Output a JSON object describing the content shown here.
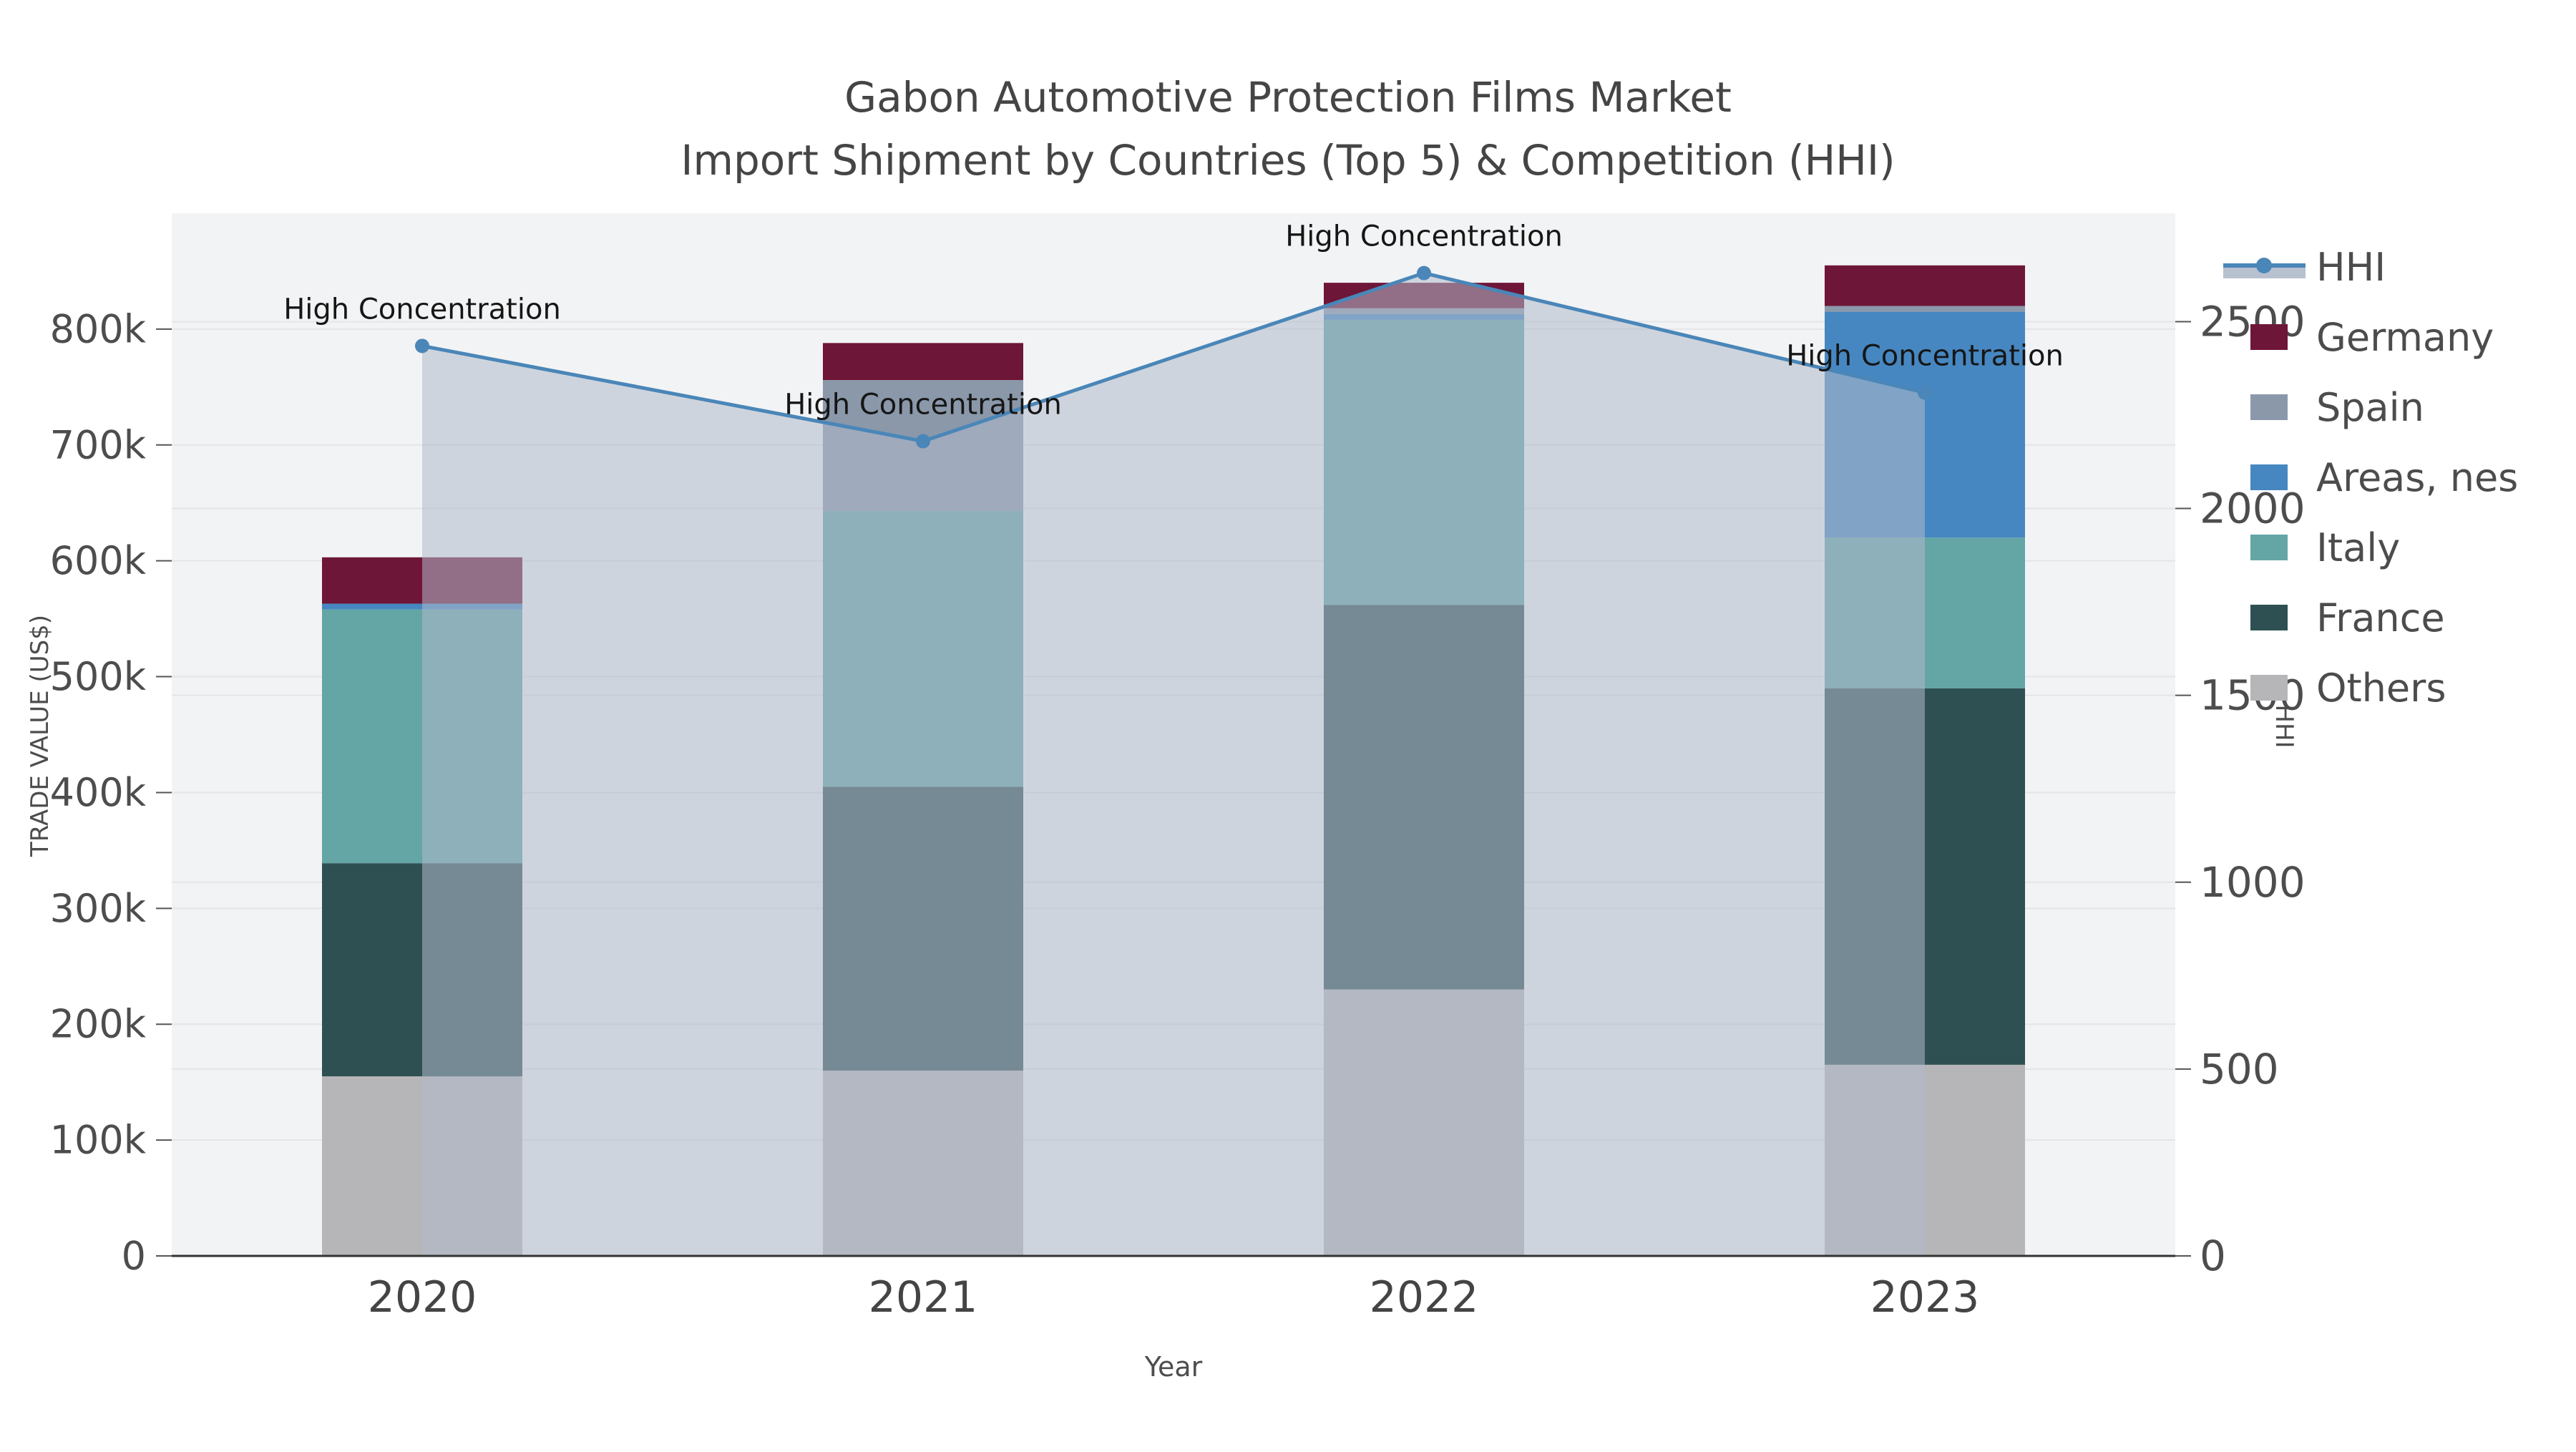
{
  "title": {
    "line1": "Gabon Automotive Protection Films Market",
    "line2": "Import Shipment by Countries (Top 5) & Competition (HHI)"
  },
  "legend": {
    "items": [
      {
        "label": "HHI",
        "type": "line",
        "color": "#4a86b8"
      },
      {
        "label": "Germany",
        "type": "swatch",
        "color": "#6e1637"
      },
      {
        "label": "Spain",
        "type": "swatch",
        "color": "#8a98aa"
      },
      {
        "label": "Areas, nes",
        "type": "swatch",
        "color": "#4687c1"
      },
      {
        "label": "Italy",
        "type": "swatch",
        "color": "#64a5a6"
      },
      {
        "label": "France",
        "type": "swatch",
        "color": "#2e5053"
      },
      {
        "label": "Others",
        "type": "swatch",
        "color": "#b6b6b8"
      }
    ]
  },
  "chart_data": {
    "type": "combo-stacked-bar-line",
    "categories": [
      "2020",
      "2021",
      "2022",
      "2023"
    ],
    "series": [
      {
        "name": "Others",
        "color": "#b6b6b8",
        "values": [
          155000,
          160000,
          230000,
          165000
        ]
      },
      {
        "name": "France",
        "color": "#2e5053",
        "values": [
          184000,
          245000,
          332000,
          325000
        ]
      },
      {
        "name": "Italy",
        "color": "#64a5a6",
        "values": [
          219000,
          238000,
          246000,
          130000
        ]
      },
      {
        "name": "Areas, nes",
        "color": "#4687c1",
        "values": [
          5000,
          0,
          5000,
          195000
        ]
      },
      {
        "name": "Spain",
        "color": "#8a98aa",
        "values": [
          0,
          113000,
          5000,
          5000
        ]
      },
      {
        "name": "Germany",
        "color": "#6e1637",
        "values": [
          40000,
          32000,
          22000,
          35000
        ]
      }
    ],
    "line": {
      "name": "HHI",
      "color": "#4a86b8",
      "fill_color": "rgba(176,186,203,0.55)",
      "values": [
        2435,
        2180,
        2630,
        2310
      ]
    },
    "annotations": [
      {
        "text": "High Concentration",
        "category_index": 0
      },
      {
        "text": "High Concentration",
        "category_index": 1
      },
      {
        "text": "High Concentration",
        "category_index": 2
      },
      {
        "text": "High Concentration",
        "category_index": 3
      }
    ],
    "left_axis": {
      "title": "TRADE VALUE (US$)",
      "ticks": [
        "0",
        "100k",
        "200k",
        "300k",
        "400k",
        "500k",
        "600k",
        "700k",
        "800k"
      ],
      "tick_values": [
        0,
        100000,
        200000,
        300000,
        400000,
        500000,
        600000,
        700000,
        800000
      ],
      "max": 900000
    },
    "right_axis": {
      "title": "HHI",
      "ticks": [
        "0",
        "500",
        "1000",
        "1500",
        "2000",
        "2500"
      ],
      "tick_values": [
        0,
        500,
        1000,
        1500,
        2000,
        2500
      ],
      "max": 2790
    },
    "x_axis": {
      "title": "Year"
    },
    "plot_background": "#f2f3f4",
    "gridline_color": "#e3e5e9"
  }
}
